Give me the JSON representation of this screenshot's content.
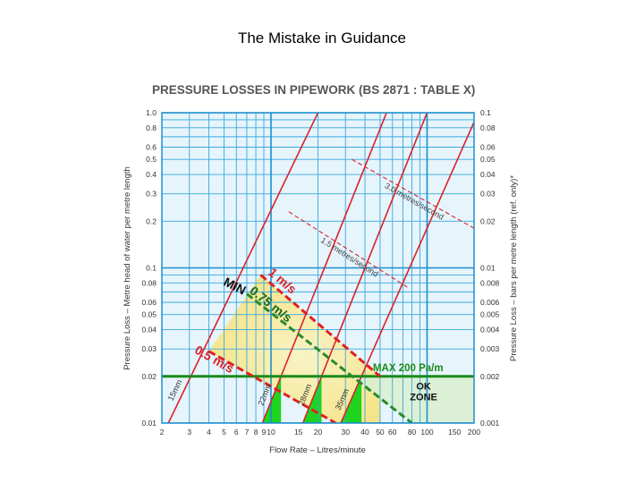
{
  "slide_title": "The Mistake in Guidance",
  "chart_data": {
    "type": "line",
    "title": "PRESSURE LOSSES IN PIPEWORK (BS 2871 : TABLE X)",
    "xlabel": "Flow Rate – Litres/minute",
    "ylabel": "Pressure Loss – Metre head of water per metre length",
    "y2label": "Pressure Loss – bars per metre length  (ref. only)*",
    "xscale": "log",
    "yscale": "log",
    "xlim": [
      2,
      200
    ],
    "ylim": [
      0.01,
      1.0
    ],
    "grid": true,
    "x_ticks": [
      {
        "v": 2,
        "t": "2"
      },
      {
        "v": 3,
        "t": "3"
      },
      {
        "v": 4,
        "t": "4"
      },
      {
        "v": 5,
        "t": "5"
      },
      {
        "v": 6,
        "t": "6"
      },
      {
        "v": 7,
        "t": "7"
      },
      {
        "v": 8,
        "t": "8"
      },
      {
        "v": 9,
        "t": "9"
      },
      {
        "v": 10,
        "t": "10"
      },
      {
        "v": 15,
        "t": "15"
      },
      {
        "v": 20,
        "t": "20"
      },
      {
        "v": 30,
        "t": "30"
      },
      {
        "v": 40,
        "t": "40"
      },
      {
        "v": 50,
        "t": "50"
      },
      {
        "v": 60,
        "t": "60"
      },
      {
        "v": 80,
        "t": "80"
      },
      {
        "v": 100,
        "t": "100"
      },
      {
        "v": 150,
        "t": "150"
      },
      {
        "v": 200,
        "t": "200"
      }
    ],
    "y_ticks": [
      {
        "v": 1.0,
        "t": "1.0"
      },
      {
        "v": 0.8,
        "t": "0.8"
      },
      {
        "v": 0.6,
        "t": "0.6"
      },
      {
        "v": 0.5,
        "t": "0.5"
      },
      {
        "v": 0.4,
        "t": "0.4"
      },
      {
        "v": 0.3,
        "t": "0.3"
      },
      {
        "v": 0.2,
        "t": "0.2"
      },
      {
        "v": 0.1,
        "t": "0.1"
      },
      {
        "v": 0.08,
        "t": "0.08"
      },
      {
        "v": 0.06,
        "t": "0.06"
      },
      {
        "v": 0.05,
        "t": "0.05"
      },
      {
        "v": 0.04,
        "t": "0.04"
      },
      {
        "v": 0.03,
        "t": "0.03"
      },
      {
        "v": 0.02,
        "t": "0.02"
      },
      {
        "v": 0.01,
        "t": "0.01"
      }
    ],
    "y2_ticks": [
      {
        "v": 1.0,
        "t": "0.1"
      },
      {
        "v": 0.8,
        "t": "0.08"
      },
      {
        "v": 0.6,
        "t": "0.06"
      },
      {
        "v": 0.5,
        "t": "0.05"
      },
      {
        "v": 0.4,
        "t": "0.04"
      },
      {
        "v": 0.3,
        "t": "0.03"
      },
      {
        "v": 0.2,
        "t": "0.02"
      },
      {
        "v": 0.1,
        "t": "0.01"
      },
      {
        "v": 0.08,
        "t": "0.008"
      },
      {
        "v": 0.06,
        "t": "0.006"
      },
      {
        "v": 0.05,
        "t": "0.005"
      },
      {
        "v": 0.04,
        "t": "0.004"
      },
      {
        "v": 0.03,
        "t": "0.003"
      },
      {
        "v": 0.02,
        "t": "0.002"
      },
      {
        "v": 0.01,
        "t": "0.001"
      }
    ],
    "pipe_lines": [
      {
        "label": "15mm",
        "points": [
          [
            2.2,
            0.01
          ],
          [
            20,
            1.0
          ]
        ]
      },
      {
        "label": "22mm",
        "points": [
          [
            8.8,
            0.01
          ],
          [
            55,
            1.0
          ]
        ]
      },
      {
        "label": "28mm",
        "points": [
          [
            16,
            0.01
          ],
          [
            100,
            1.0
          ]
        ]
      },
      {
        "label": "35mm",
        "points": [
          [
            28,
            0.01
          ],
          [
            200,
            0.87
          ]
        ]
      }
    ],
    "velocity_lines": [
      {
        "label": "3.0 metres/second",
        "points": [
          [
            33,
            0.5
          ],
          [
            200,
            0.18
          ]
        ]
      },
      {
        "label": "1.5 metres/second",
        "points": [
          [
            13,
            0.23
          ],
          [
            75,
            0.075
          ]
        ]
      }
    ],
    "guidance_lines": [
      {
        "label": "1 m/s",
        "color": "#e02020",
        "points": [
          [
            8.6,
            0.09
          ],
          [
            50,
            0.02
          ]
        ]
      },
      {
        "label": "0.75 m/s",
        "color": "#2a8a2a",
        "points": [
          [
            7,
            0.068
          ],
          [
            80,
            0.01
          ]
        ]
      },
      {
        "label": "0.5 m/s",
        "color": "#e02020",
        "points": [
          [
            4,
            0.029
          ],
          [
            26,
            0.01
          ]
        ]
      }
    ],
    "min_label": "MIN",
    "max_line": {
      "label": "MAX 200 Pa/m",
      "y": 0.02
    },
    "ok_zone_label": [
      "OK",
      "ZONE"
    ]
  }
}
